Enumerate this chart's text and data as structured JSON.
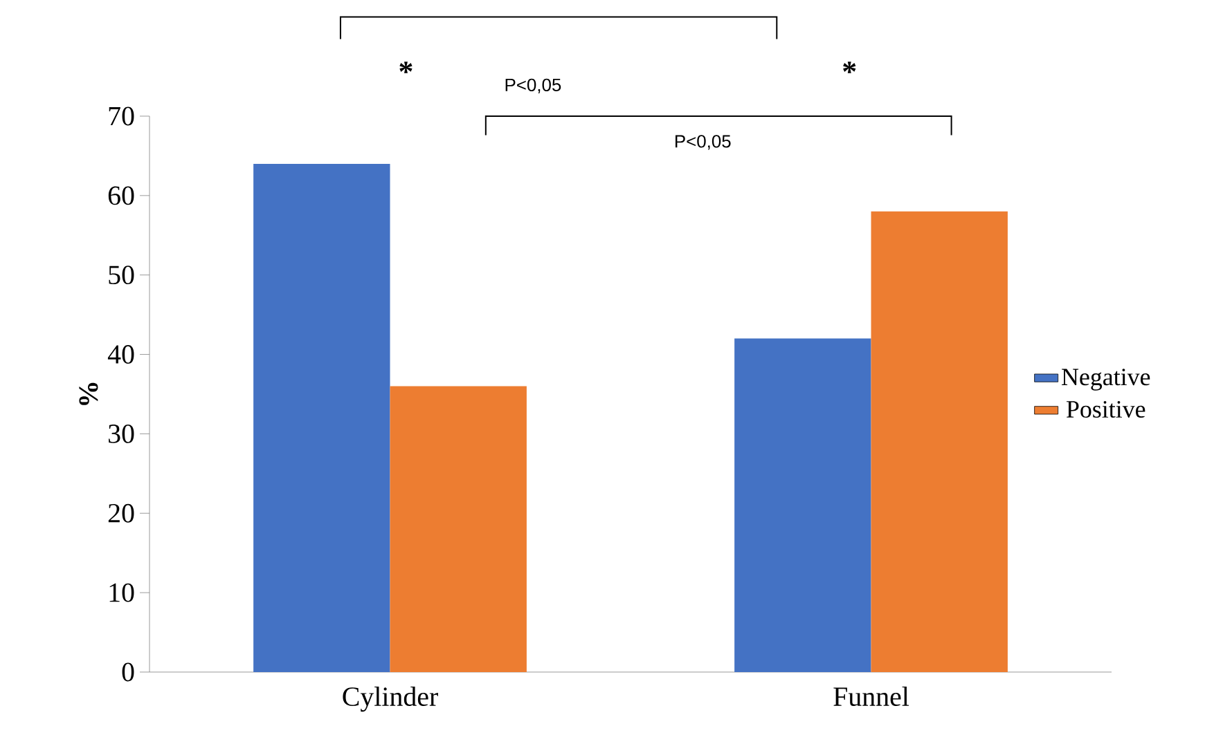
{
  "chart_data": {
    "type": "bar",
    "ylabel": "%",
    "categories": [
      "Cylinder",
      "Funnel"
    ],
    "series": [
      {
        "name": "Negative",
        "color": "#4472c4",
        "values": [
          64,
          42
        ]
      },
      {
        "name": "Positive",
        "color": "#ed7d31",
        "values": [
          36,
          58
        ]
      }
    ],
    "ylim": [
      0,
      70
    ],
    "yticks": [
      0,
      10,
      20,
      30,
      40,
      50,
      60,
      70
    ],
    "legend": "right",
    "grid": false,
    "annotations": [
      "*",
      "P<0,05",
      "*",
      "P<0,05"
    ]
  }
}
